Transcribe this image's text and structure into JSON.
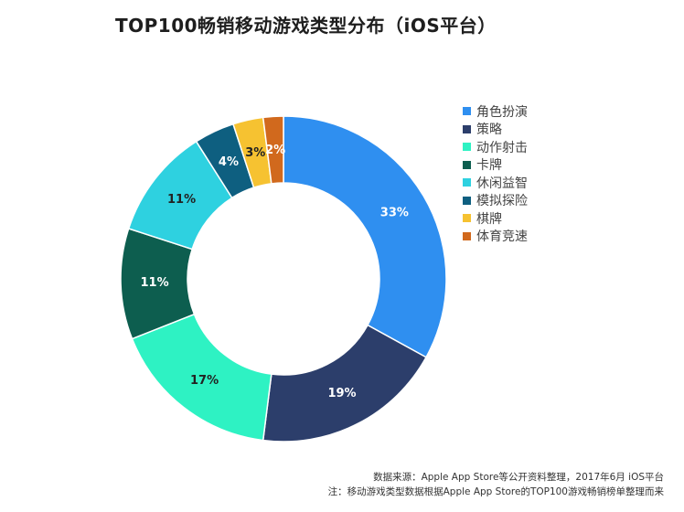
{
  "title": "TOP100畅销移动游戏类型分布（iOS平台）",
  "chart_data": {
    "type": "pie",
    "donut": true,
    "title": "TOP100畅销移动游戏类型分布（iOS平台）",
    "categories": [
      "角色扮演",
      "策略",
      "动作射击",
      "卡牌",
      "休闲益智",
      "模拟探险",
      "棋牌",
      "体育竞速"
    ],
    "values": [
      33,
      19,
      17,
      11,
      11,
      4,
      3,
      2
    ],
    "labels": [
      "33%",
      "19%",
      "17%",
      "11%",
      "11%",
      "4%",
      "3%",
      "2%"
    ],
    "colors": [
      "#2F8FF0",
      "#2C3E6B",
      "#2EF2C3",
      "#0D5E4F",
      "#2ED1E0",
      "#0E5F80",
      "#F6C231",
      "#D1691D"
    ],
    "label_colors": [
      "#ffffff",
      "#ffffff",
      "#222222",
      "#ffffff",
      "#222222",
      "#ffffff",
      "#222222",
      "#ffffff"
    ],
    "legend_position": "right"
  },
  "legend": [
    {
      "label": "角色扮演",
      "color": "#2F8FF0"
    },
    {
      "label": "策略",
      "color": "#2C3E6B"
    },
    {
      "label": "动作射击",
      "color": "#2EF2C3"
    },
    {
      "label": "卡牌",
      "color": "#0D5E4F"
    },
    {
      "label": "休闲益智",
      "color": "#2ED1E0"
    },
    {
      "label": "模拟探险",
      "color": "#0E5F80"
    },
    {
      "label": "棋牌",
      "color": "#F6C231"
    },
    {
      "label": "体育竞速",
      "color": "#D1691D"
    }
  ],
  "footnotes": {
    "source": "数据来源：Apple App Store等公开资料整理，2017年6月 iOS平台",
    "note": "注：移动游戏类型数据根据Apple App Store的TOP100游戏畅销榜单整理而来"
  }
}
